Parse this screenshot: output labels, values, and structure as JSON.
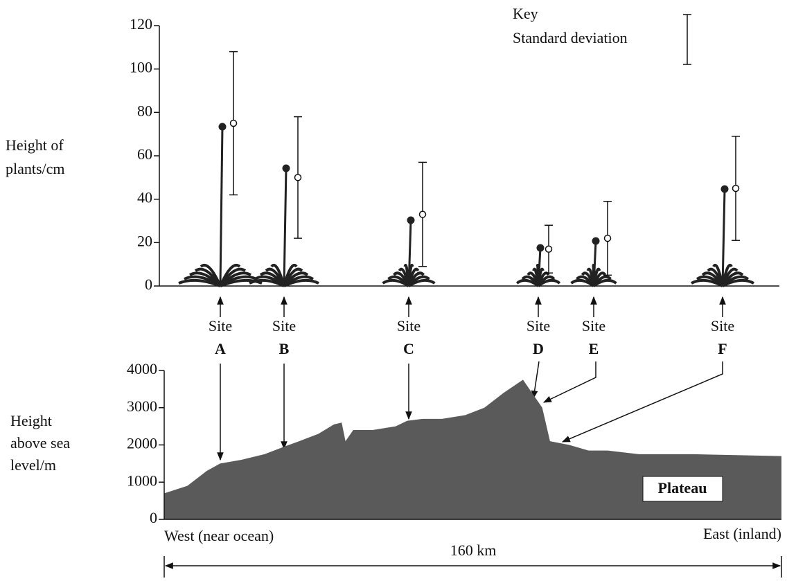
{
  "chart_data": [
    {
      "type": "errorbar",
      "ylabel": [
        "Height of",
        "plants/cm"
      ],
      "key_title": "Key",
      "key_label": "Standard deviation",
      "site_label": "Site",
      "categories": [
        "A",
        "B",
        "C",
        "D",
        "E",
        "F"
      ],
      "values": [
        75,
        50,
        33,
        17,
        22,
        45
      ],
      "errors": [
        33,
        28,
        24,
        11,
        17,
        24
      ],
      "ylim": [
        0,
        120
      ],
      "yticks": [
        0,
        20,
        40,
        60,
        80,
        100,
        120
      ],
      "color": "#111111"
    },
    {
      "type": "area",
      "ylabel": [
        "Height",
        "above sea",
        "level/m"
      ],
      "x": [
        0,
        6,
        11,
        14.5,
        20,
        26,
        31,
        35,
        40,
        44,
        46,
        47,
        49,
        54,
        60,
        63,
        67,
        72,
        78,
        83,
        88,
        93,
        96,
        98,
        100,
        105,
        110,
        115,
        123,
        137,
        160
      ],
      "values": [
        700,
        900,
        1300,
        1500,
        1600,
        1750,
        1950,
        2100,
        2300,
        2550,
        2600,
        2100,
        2400,
        2400,
        2500,
        2650,
        2700,
        2700,
        2800,
        3000,
        3400,
        3750,
        3300,
        3000,
        2100,
        2000,
        1850,
        1850,
        1750,
        1750,
        1700
      ],
      "xlim": [
        0,
        160
      ],
      "ylim": [
        0,
        4000
      ],
      "yticks": [
        0,
        1000,
        2000,
        3000,
        4000
      ],
      "color": "#5a5a5a",
      "x_start_label": "West (near ocean)",
      "x_end_label": "East (inland)",
      "distance_label": "160 km",
      "annotation": "Plateau"
    }
  ]
}
